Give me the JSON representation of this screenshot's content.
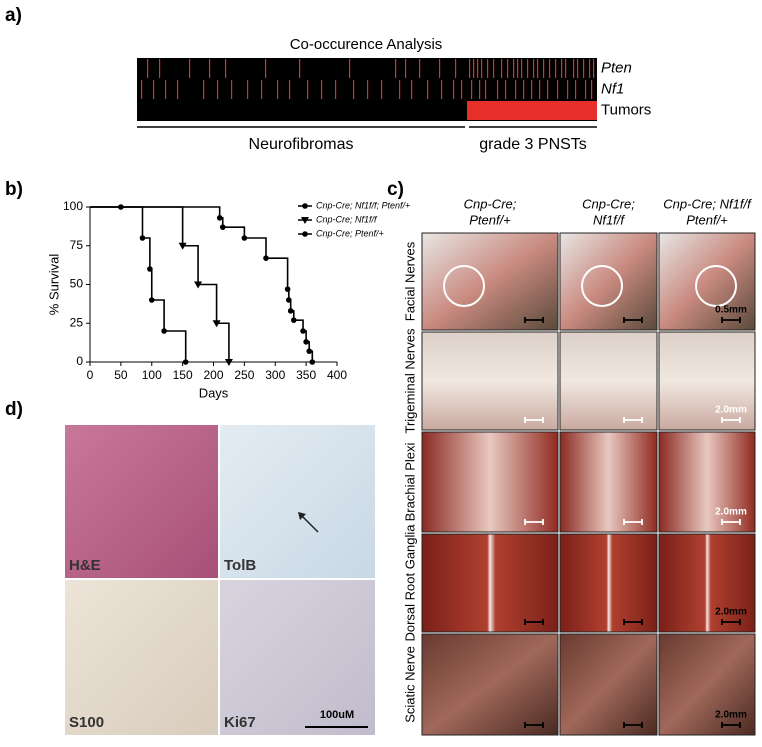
{
  "panels": {
    "a": "a)",
    "b": "b)",
    "c": "c)",
    "d": "d)"
  },
  "heatmap": {
    "title": "Co-occurence Analysis",
    "samples": 230,
    "rows": [
      {
        "name": "Pten",
        "marks": [
          5,
          11,
          26,
          36,
          44,
          64,
          81,
          106,
          129,
          134,
          141,
          151,
          159,
          166,
          168,
          170,
          172,
          175,
          178,
          182,
          185,
          188,
          190,
          192,
          195,
          198,
          200,
          203,
          206,
          209,
          212,
          214,
          218,
          220,
          223,
          226,
          228
        ]
      },
      {
        "name": "Nf1",
        "marks": [
          2,
          8,
          14,
          20,
          33,
          40,
          47,
          55,
          62,
          70,
          76,
          85,
          92,
          99,
          108,
          115,
          122,
          131,
          137,
          145,
          152,
          158,
          162,
          167,
          171,
          174,
          180,
          184,
          189,
          193,
          197,
          201,
          205,
          210,
          215,
          219,
          224,
          227
        ]
      },
      {
        "name": "Tumors"
      }
    ],
    "groups": [
      {
        "label": "Neurofibromas",
        "samples": 165
      },
      {
        "label": "grade 3 PNSTs",
        "samples": 65
      }
    ]
  },
  "chart_data": {
    "type": "line",
    "step": true,
    "xlabel": "Days",
    "ylabel": "% Survival",
    "xlim": [
      0,
      400
    ],
    "ylim": [
      0,
      100
    ],
    "xticks": [
      0,
      50,
      100,
      150,
      200,
      250,
      300,
      350,
      400
    ],
    "yticks": [
      0,
      25,
      50,
      75,
      100
    ],
    "color": "#000000",
    "series": [
      {
        "name": "Cnp-Cre; Nf1f/f; Ptenf/+",
        "marker": "circle",
        "x": [
          0,
          210,
          215,
          250,
          285,
          320,
          322,
          325,
          330,
          345,
          350,
          355,
          360
        ],
        "values": [
          100,
          93,
          87,
          80,
          67,
          47,
          40,
          33,
          27,
          20,
          13,
          7,
          0
        ]
      },
      {
        "name": "Cnp-Cre; Nf1f/f",
        "marker": "triangle",
        "x": [
          0,
          150,
          175,
          205,
          225
        ],
        "values": [
          100,
          75,
          50,
          25,
          0
        ]
      },
      {
        "name": "Cnp-Cre; Ptenf/+",
        "marker": "circle",
        "x": [
          0,
          50,
          85,
          97,
          100,
          120,
          155
        ],
        "values": [
          100,
          100,
          80,
          60,
          40,
          20,
          0
        ]
      }
    ]
  },
  "photos": {
    "columns": [
      "Cnp-Cre;",
      "Ptenf/+",
      "Cnp-Cre;",
      "Nf1f/f",
      "Cnp-Cre; Nf1f/f",
      "Ptenf/+"
    ],
    "rows": [
      "Facial Nerves",
      "Trigeminal Nerves",
      "Brachial Plexi",
      "Dorsal Root Ganglia",
      "Sciatic Nerve"
    ],
    "scale_bars": [
      "0.5mm",
      "2.0mm",
      "2.0mm",
      "2.0mm",
      "2.0mm"
    ]
  },
  "histology": {
    "stains": [
      "H&E",
      "TolB",
      "S100",
      "Ki67"
    ],
    "scale_bar": "100uM"
  }
}
